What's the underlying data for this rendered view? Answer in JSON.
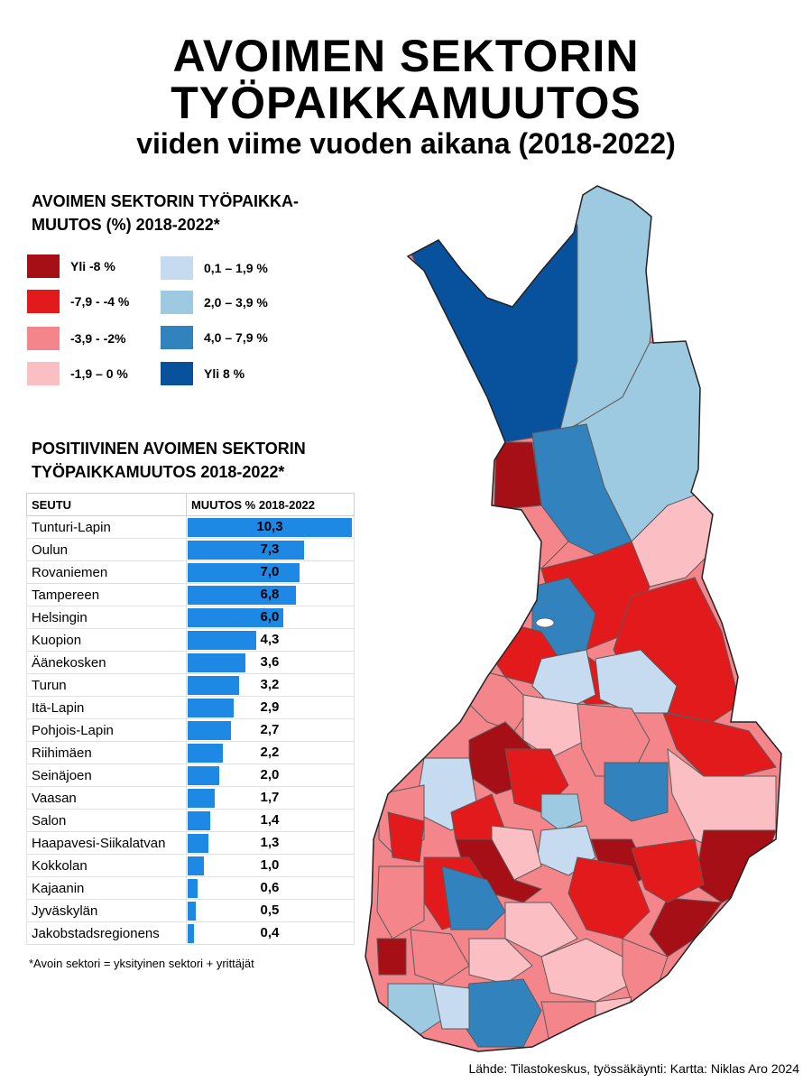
{
  "title": {
    "line1": "AVOIMEN SEKTORIN",
    "line2": "TYÖPAIKKAMUUTOS",
    "subtitle": "viiden viime vuoden aikana (2018-2022)"
  },
  "legend": {
    "title": "AVOIMEN SEKTORIN TYÖPAIKKA-MUUTOS (%) 2018-2022*",
    "classes": [
      {
        "label": "Yli -8 %",
        "color": "#a50f15"
      },
      {
        "label": "-7,9 - -4 %",
        "color": "#e31a1c"
      },
      {
        "label": "-3,9 - -2%",
        "color": "#f4868b"
      },
      {
        "label": "-1,9 – 0 %",
        "color": "#fbbfc3"
      },
      {
        "label": "0,1 – 1,9 %",
        "color": "#c6dbef"
      },
      {
        "label": "2,0  – 3,9 %",
        "color": "#9ecae1"
      },
      {
        "label": "4,0  – 7,9 %",
        "color": "#3182bd"
      },
      {
        "label": "Yli 8 %",
        "color": "#08519c"
      }
    ]
  },
  "table": {
    "title": "POSITIIVINEN AVOIMEN SEKTORIN TYÖPAIKKAMUUTOS 2018-2022*",
    "col_region": "SEUTU",
    "col_change": "MUUTOS % 2018-2022",
    "bar_color": "#1e88e5",
    "rows": [
      {
        "name": "Tunturi-Lapin",
        "value": "10,3",
        "num": 10.3
      },
      {
        "name": "Oulun",
        "value": "7,3",
        "num": 7.3
      },
      {
        "name": "Rovaniemen",
        "value": "7,0",
        "num": 7.0
      },
      {
        "name": "Tampereen",
        "value": "6,8",
        "num": 6.8
      },
      {
        "name": "Helsingin",
        "value": "6,0",
        "num": 6.0
      },
      {
        "name": "Kuopion",
        "value": "4,3",
        "num": 4.3
      },
      {
        "name": "Äänekosken",
        "value": "3,6",
        "num": 3.6
      },
      {
        "name": "Turun",
        "value": "3,2",
        "num": 3.2
      },
      {
        "name": "Itä-Lapin",
        "value": "2,9",
        "num": 2.9
      },
      {
        "name": "Pohjois-Lapin",
        "value": "2,7",
        "num": 2.7
      },
      {
        "name": "Riihimäen",
        "value": "2,2",
        "num": 2.2
      },
      {
        "name": "Seinäjoen",
        "value": "2,0",
        "num": 2.0
      },
      {
        "name": "Vaasan",
        "value": "1,7",
        "num": 1.7
      },
      {
        "name": "Salon",
        "value": "1,4",
        "num": 1.4
      },
      {
        "name": "Haapavesi-Siikalatvan",
        "value": "1,3",
        "num": 1.3
      },
      {
        "name": "Kokkolan",
        "value": "1,0",
        "num": 1.0
      },
      {
        "name": "Kajaanin",
        "value": "0,6",
        "num": 0.6
      },
      {
        "name": "Jyväskylän",
        "value": "0,5",
        "num": 0.5
      },
      {
        "name": "Jakobstadsregionens",
        "value": "0,4",
        "num": 0.4
      }
    ]
  },
  "footnote": "*Avoin sektori = yksityinen sektori + yrittäjät",
  "source": "Lähde: Tilastokeskus, työssäkäynti: Kartta: Niklas Aro 2024"
}
